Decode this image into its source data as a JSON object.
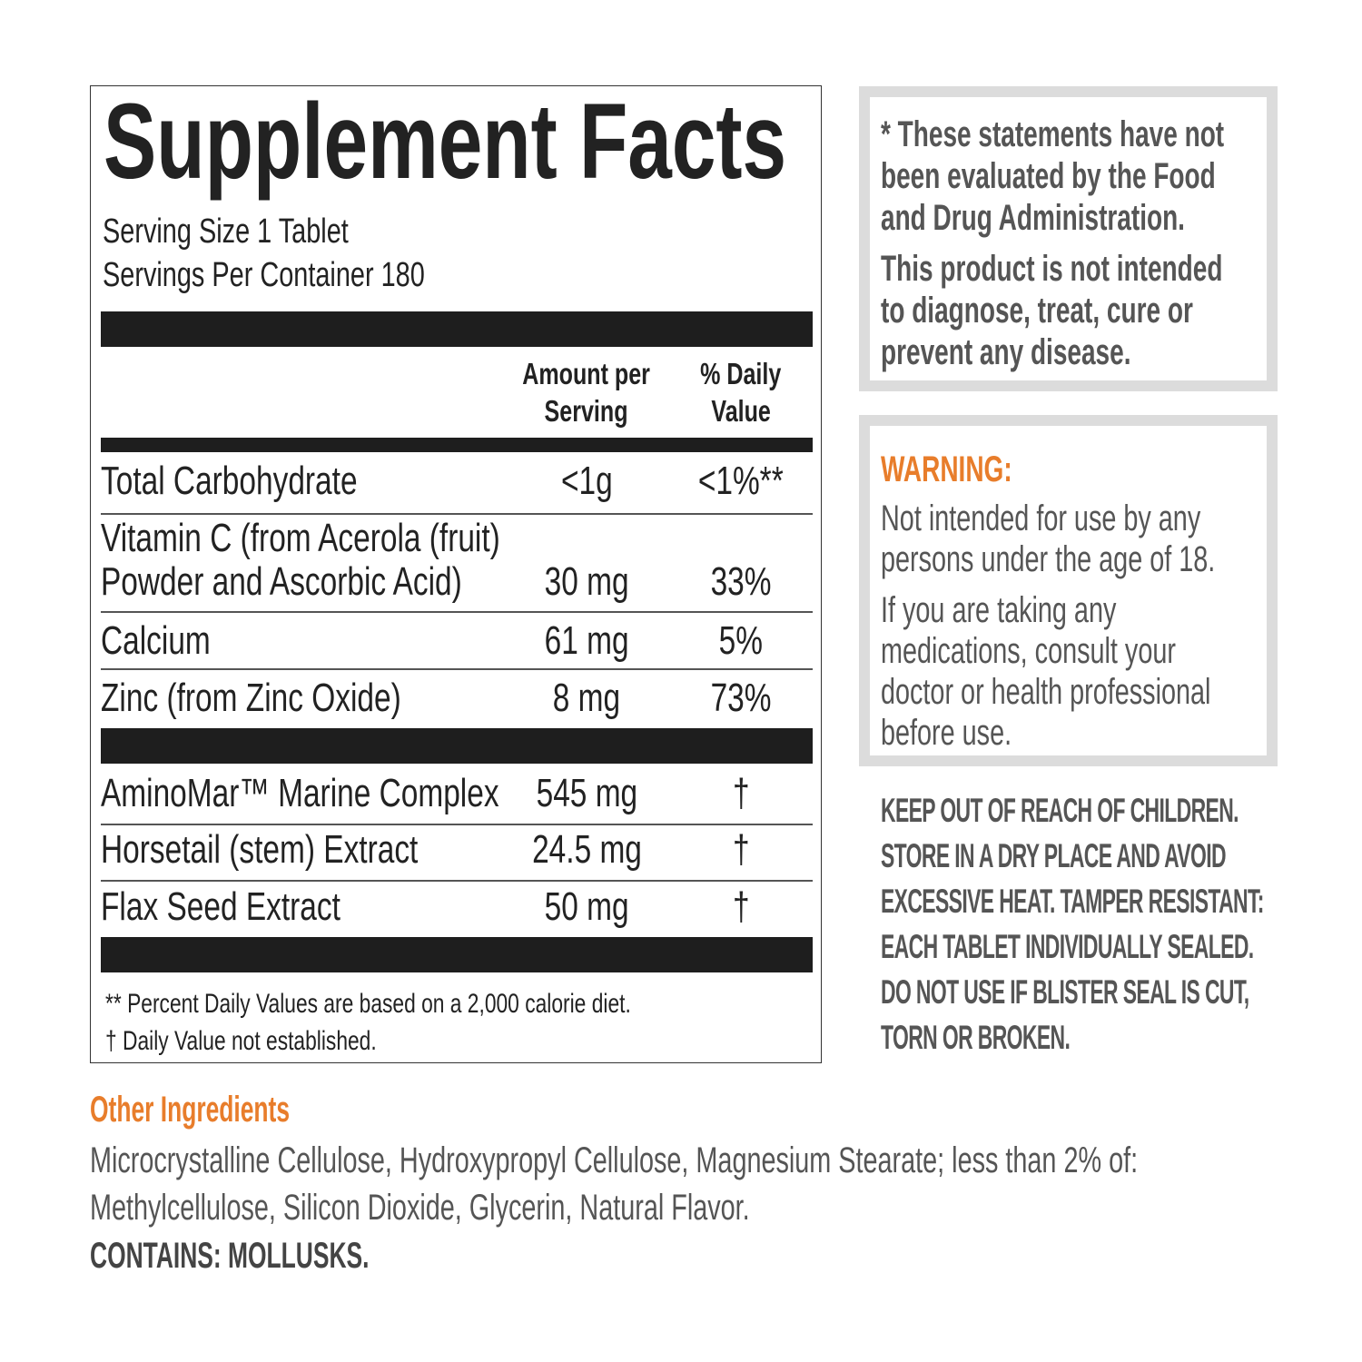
{
  "label": {
    "title": "Supplement Facts",
    "serving_size": "Serving Size 1 Tablet",
    "servings_per_container": "Servings Per Container 180",
    "col_amount": [
      "Amount per",
      "Serving"
    ],
    "col_dv": [
      "% Daily",
      "Value"
    ],
    "rows": [
      {
        "name": "Total Carbohydrate",
        "amount": "<1g",
        "dv": "<1%**"
      },
      {
        "name": [
          "Vitamin C (from Acerola (fruit)",
          "Powder and Ascorbic Acid)"
        ],
        "amount": "30 mg",
        "dv": "33%"
      },
      {
        "name": "Calcium",
        "amount": "61 mg",
        "dv": "5%"
      },
      {
        "name": "Zinc (from Zinc Oxide)",
        "amount": "8 mg",
        "dv": "73%"
      },
      {
        "name": "AminoMar™ Marine Complex",
        "amount": "545 mg",
        "dv": "†"
      },
      {
        "name": "Horsetail (stem) Extract",
        "amount": "24.5 mg",
        "dv": "†"
      },
      {
        "name": "Flax Seed Extract",
        "amount": "50 mg",
        "dv": "†"
      }
    ],
    "footnotes": [
      "** Percent Daily Values are based on a 2,000 calorie diet.",
      "† Daily Value not established."
    ]
  },
  "fda": {
    "lines": [
      "* These statements have not",
      "been evaluated by the Food",
      "and Drug Administration."
    ],
    "lines2": [
      "This product is not intended",
      "to diagnose, treat, cure or",
      "prevent any disease."
    ]
  },
  "warning": {
    "heading": "WARNING:",
    "p1": [
      "Not intended for use by any",
      "persons under the age of 18."
    ],
    "p2": [
      "If you are taking any",
      "medications, consult  your",
      "doctor or health professional",
      "before use."
    ]
  },
  "storage": [
    "KEEP OUT OF REACH OF CHILDREN.",
    "STORE IN A DRY PLACE AND AVOID",
    "EXCESSIVE HEAT. TAMPER RESISTANT:",
    "EACH TABLET INDIVIDUALLY SEALED.",
    "DO NOT USE IF BLISTER SEAL IS CUT,",
    "TORN OR BROKEN."
  ],
  "other": {
    "heading": "Other Ingredients",
    "lines": [
      "Microcrystalline Cellulose, Hydroxypropyl Cellulose, Magnesium Stearate; less than 2% of:",
      "Methylcellulose, Silicon Dioxide, Glycerin, Natural Flavor."
    ],
    "contains": "CONTAINS: MOLLUSKS."
  },
  "colors": {
    "accent": "#e87d2b",
    "text_gray": "#555555",
    "border_gray": "#dcdcdc"
  }
}
